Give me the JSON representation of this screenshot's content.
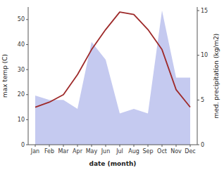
{
  "chart_data": {
    "type": "line",
    "categories": [
      "Jan",
      "Feb",
      "Mar",
      "Apr",
      "May",
      "Jun",
      "Jul",
      "Aug",
      "Sep",
      "Oct",
      "Nov",
      "Dec"
    ],
    "xlabel": "date (month)",
    "ylabel": "max temp (C)",
    "y2label": "med. precipitation (kg/m2)",
    "series": [
      {
        "type": "area",
        "axis": "y2",
        "color": "#c5caf0",
        "values": [
          5.5,
          5.0,
          5.0,
          4.0,
          11.5,
          9.5,
          3.5,
          4.0,
          3.5,
          15.0,
          7.5,
          7.5
        ]
      },
      {
        "type": "line",
        "color": "#9e2a2a",
        "values": [
          15,
          17,
          20,
          28,
          38,
          46,
          53,
          52,
          46,
          38,
          22,
          15
        ]
      }
    ],
    "ylim": [
      0,
      55
    ],
    "yticks": [
      0,
      10,
      20,
      30,
      40,
      50
    ],
    "y2lim": [
      0,
      15.4
    ],
    "y2ticks": [
      0,
      5,
      10,
      15
    ],
    "grid": false
  }
}
